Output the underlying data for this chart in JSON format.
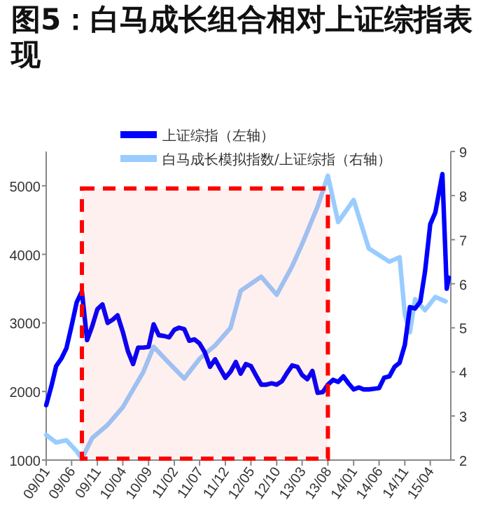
{
  "chart_data": {
    "type": "line",
    "title": "图5：白马成长组合相对上证综指表现",
    "xlim": [
      "2009-01",
      "2015-08"
    ],
    "xticks": [
      {
        "value": "2009-01",
        "label": "09/01"
      },
      {
        "value": "2009-06",
        "label": "09/06"
      },
      {
        "value": "2009-11",
        "label": "09/11"
      },
      {
        "value": "2010-04",
        "label": "10/04"
      },
      {
        "value": "2010-09",
        "label": "10/09"
      },
      {
        "value": "2011-02",
        "label": "11/02"
      },
      {
        "value": "2011-07",
        "label": "11/07"
      },
      {
        "value": "2011-12",
        "label": "11/12"
      },
      {
        "value": "2012-05",
        "label": "12/05"
      },
      {
        "value": "2012-10",
        "label": "12/10"
      },
      {
        "value": "2013-03",
        "label": "13/03"
      },
      {
        "value": "2013-08",
        "label": "13/08"
      },
      {
        "value": "2014-01",
        "label": "14/01"
      },
      {
        "value": "2014-06",
        "label": "14/06"
      },
      {
        "value": "2014-11",
        "label": "14/11"
      },
      {
        "value": "2015-04",
        "label": "15/04"
      }
    ],
    "ylim": [
      1000,
      5500
    ],
    "yticks": [
      1000,
      2000,
      3000,
      4000,
      5000
    ],
    "y2lim": [
      2,
      9
    ],
    "y2ticks": [
      2,
      3,
      4,
      5,
      6,
      7,
      8,
      9
    ],
    "legend": "top",
    "grid": false,
    "bands": [
      {
        "axis": "x",
        "from": "2009-08",
        "to": "2013-08",
        "color": "#ff0000"
      }
    ],
    "series": [
      {
        "name": "上证综指（左轴）",
        "color": "#0000ff",
        "axis": "y",
        "x": [
          "2009-01",
          "2009-02",
          "2009-03",
          "2009-04",
          "2009-05",
          "2009-06",
          "2009-07",
          "2009-08",
          "2009-09",
          "2009-10",
          "2009-11",
          "2009-12",
          "2010-01",
          "2010-02",
          "2010-03",
          "2010-04",
          "2010-05",
          "2010-06",
          "2010-07",
          "2010-08",
          "2010-09",
          "2010-10",
          "2010-11",
          "2010-12",
          "2011-01",
          "2011-02",
          "2011-03",
          "2011-04",
          "2011-05",
          "2011-06",
          "2011-07",
          "2011-08",
          "2011-09",
          "2011-10",
          "2011-11",
          "2011-12",
          "2012-01",
          "2012-02",
          "2012-03",
          "2012-04",
          "2012-05",
          "2012-06",
          "2012-07",
          "2012-08",
          "2012-09",
          "2012-10",
          "2012-11",
          "2012-12",
          "2013-01",
          "2013-02",
          "2013-03",
          "2013-04",
          "2013-05",
          "2013-06",
          "2013-07",
          "2013-08",
          "2013-09",
          "2013-10",
          "2013-11",
          "2013-12",
          "2014-01",
          "2014-02",
          "2014-03",
          "2014-04",
          "2014-05",
          "2014-06",
          "2014-07",
          "2014-08",
          "2014-09",
          "2014-10",
          "2014-11",
          "2014-12",
          "2015-01",
          "2015-02",
          "2015-03",
          "2015-04",
          "2015-05",
          "2015-06-12",
          "2015-07-08",
          "2015-07-20"
        ],
        "values": [
          1800,
          2080,
          2370,
          2480,
          2630,
          2960,
          3300,
          3460,
          2750,
          2950,
          3200,
          3270,
          3000,
          3050,
          3110,
          2870,
          2590,
          2400,
          2640,
          2640,
          2650,
          2980,
          2820,
          2810,
          2790,
          2900,
          2930,
          2910,
          2740,
          2760,
          2700,
          2570,
          2360,
          2470,
          2330,
          2200,
          2290,
          2430,
          2260,
          2400,
          2370,
          2230,
          2100,
          2100,
          2120,
          2100,
          2150,
          2270,
          2380,
          2360,
          2240,
          2180,
          2300,
          1980,
          1990,
          2100,
          2170,
          2140,
          2220,
          2120,
          2030,
          2060,
          2030,
          2030,
          2040,
          2050,
          2200,
          2220,
          2360,
          2420,
          2680,
          3230,
          3210,
          3310,
          3750,
          4440,
          4610,
          5170,
          3500,
          3660
        ]
      },
      {
        "name": "白马成长模拟指数/上证综指（右轴）",
        "color": "#99ccff",
        "axis": "y2",
        "x": [
          "2009-01",
          "2009-03",
          "2009-05",
          "2009-07",
          "2009-08",
          "2009-10",
          "2010-01",
          "2010-04",
          "2010-06",
          "2010-08",
          "2010-10",
          "2011-01",
          "2011-04",
          "2011-07",
          "2011-10",
          "2012-01",
          "2012-03",
          "2012-05",
          "2012-07",
          "2012-10",
          "2013-01",
          "2013-03",
          "2013-06",
          "2013-08",
          "2013-10",
          "2014-01",
          "2014-04",
          "2014-08",
          "2014-10",
          "2014-11",
          "2014-12",
          "2015-01",
          "2015-03",
          "2015-05",
          "2015-07"
        ],
        "values": [
          2.57,
          2.4,
          2.45,
          2.2,
          2.03,
          2.5,
          2.8,
          3.2,
          3.6,
          4.0,
          4.57,
          4.2,
          3.85,
          4.3,
          4.6,
          5.0,
          5.84,
          6.0,
          6.16,
          5.75,
          6.4,
          6.9,
          7.75,
          8.45,
          7.4,
          7.9,
          6.8,
          6.5,
          6.6,
          5.3,
          4.9,
          5.65,
          5.4,
          5.7,
          5.6
        ]
      }
    ]
  }
}
